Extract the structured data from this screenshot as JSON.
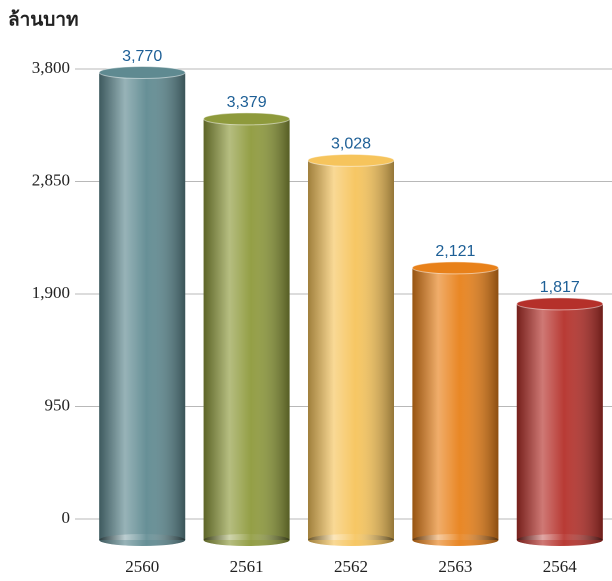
{
  "chart_data": {
    "type": "bar",
    "title": "ล้านบาท",
    "categories": [
      "2560",
      "2561",
      "2562",
      "2563",
      "2564"
    ],
    "values": [
      3770,
      3379,
      3028,
      2121,
      1817
    ],
    "value_labels": [
      "3,770",
      "3,379",
      "3,028",
      "2,121",
      "1,817"
    ],
    "colors": [
      "#5f8a91",
      "#8e9a3c",
      "#f6c45c",
      "#e8811a",
      "#b5302a"
    ],
    "ylim": [
      0,
      3800
    ],
    "yticks": [
      0,
      950,
      {
        "value": 1900,
        "label": "1,900"
      },
      {
        "value": 2850,
        "label": "2,850"
      },
      {
        "value": 3800,
        "label": "3,800"
      }
    ],
    "grid": true
  }
}
